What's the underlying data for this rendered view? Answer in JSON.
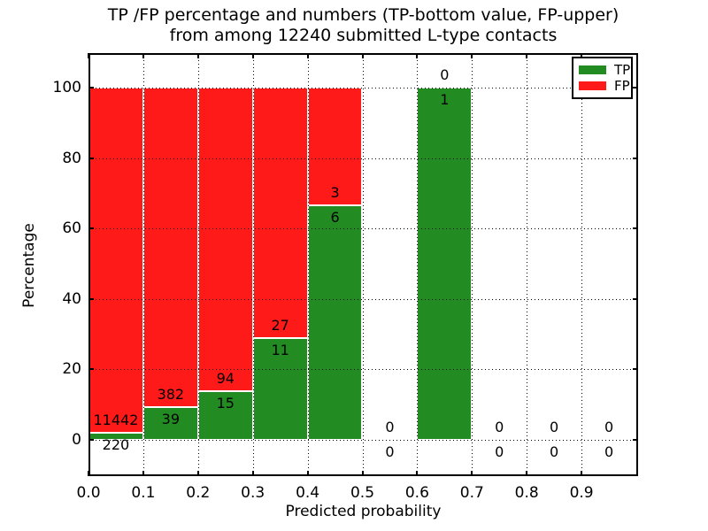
{
  "title": {
    "line1": "TP /FP percentage and numbers (TP-bottom value, FP-upper)",
    "line2": "from among 12240 submitted L-type contacts"
  },
  "axes": {
    "xlabel": "Predicted probability",
    "ylabel": "Percentage",
    "xtick_values": [
      0.0,
      0.1,
      0.2,
      0.3,
      0.4,
      0.5,
      0.6,
      0.7,
      0.8,
      0.9
    ],
    "xtick_labels": [
      "0.0",
      "0.1",
      "0.2",
      "0.3",
      "0.4",
      "0.5",
      "0.6",
      "0.7",
      "0.8",
      "0.9"
    ],
    "ytick_values": [
      0,
      20,
      40,
      60,
      80,
      100
    ],
    "ytick_labels": [
      "0",
      "20",
      "40",
      "60",
      "80",
      "100"
    ],
    "grid": "dotted"
  },
  "legend": {
    "position": "upper-right",
    "items": [
      {
        "label": "TP",
        "color_key": "tp"
      },
      {
        "label": "FP",
        "color_key": "fp"
      }
    ]
  },
  "colors": {
    "tp": "#228B22",
    "fp": "#FF1A1A",
    "bar_edge": "#FFFFFF",
    "text": "#000000",
    "grid": "#000000",
    "background": "#FFFFFF"
  },
  "chart_data": {
    "type": "bar",
    "stacked": true,
    "normalized_to_percent": true,
    "title": "TP /FP percentage and numbers (TP-bottom value, FP-upper) from among 12240 submitted L-type contacts",
    "xlabel": "Predicted probability",
    "ylabel": "Percentage",
    "xlim": [
      0.0,
      1.0
    ],
    "ylim": [
      -10,
      110
    ],
    "bin_width": 0.1,
    "total_contacts": 12240,
    "legend_position": "upper right",
    "grid": true,
    "bins": [
      {
        "x_start": 0.0,
        "x_end": 0.1,
        "tp": 220,
        "fp": 11442
      },
      {
        "x_start": 0.1,
        "x_end": 0.2,
        "tp": 39,
        "fp": 382
      },
      {
        "x_start": 0.2,
        "x_end": 0.3,
        "tp": 15,
        "fp": 94
      },
      {
        "x_start": 0.3,
        "x_end": 0.4,
        "tp": 11,
        "fp": 27
      },
      {
        "x_start": 0.4,
        "x_end": 0.5,
        "tp": 6,
        "fp": 3
      },
      {
        "x_start": 0.5,
        "x_end": 0.6,
        "tp": 0,
        "fp": 0
      },
      {
        "x_start": 0.6,
        "x_end": 0.7,
        "tp": 1,
        "fp": 0
      },
      {
        "x_start": 0.7,
        "x_end": 0.8,
        "tp": 0,
        "fp": 0
      },
      {
        "x_start": 0.8,
        "x_end": 0.9,
        "tp": 0,
        "fp": 0
      },
      {
        "x_start": 0.9,
        "x_end": 1.0,
        "tp": 0,
        "fp": 0
      }
    ],
    "series": [
      {
        "name": "TP",
        "values": [
          220,
          39,
          15,
          11,
          6,
          0,
          1,
          0,
          0,
          0
        ]
      },
      {
        "name": "FP",
        "values": [
          11442,
          382,
          94,
          27,
          3,
          0,
          0,
          0,
          0,
          0
        ]
      }
    ]
  }
}
